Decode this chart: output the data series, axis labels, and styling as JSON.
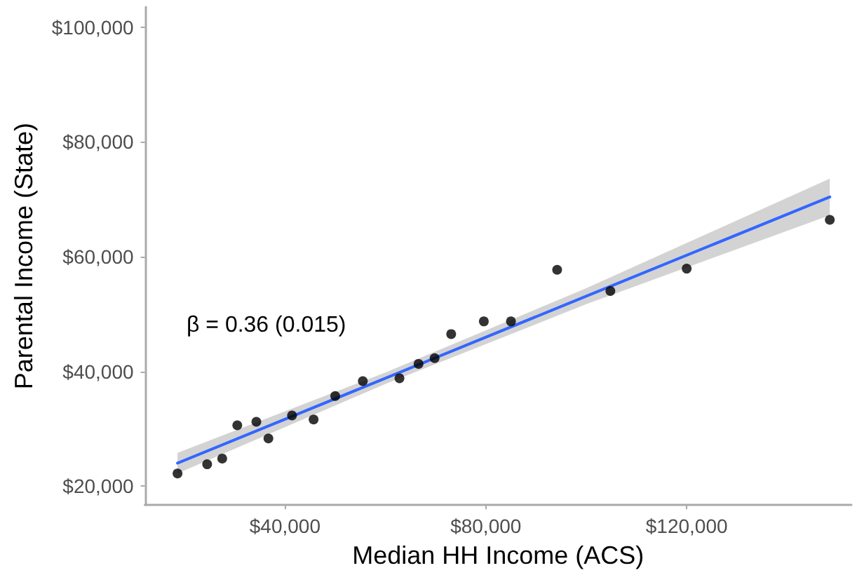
{
  "chart_data": {
    "type": "scatter",
    "xlabel": "Median HH Income (ACS)",
    "ylabel": "Parental Income (State)",
    "annotations": [
      "β = 0.36 (0.015)"
    ],
    "xlim": [
      12100,
      152800
    ],
    "ylim": [
      16700,
      103500
    ],
    "xticks": [
      {
        "value": 40000,
        "label": "$40,000"
      },
      {
        "value": 80000,
        "label": "$80,000"
      },
      {
        "value": 120000,
        "label": "$120,000"
      }
    ],
    "yticks": [
      {
        "value": 20000,
        "label": "$20,000"
      },
      {
        "value": 40000,
        "label": "$40,000"
      },
      {
        "value": 60000,
        "label": "$60,000"
      },
      {
        "value": 80000,
        "label": "$80,000"
      },
      {
        "value": 100000,
        "label": "$100,000"
      }
    ],
    "grid": false,
    "marker": "circle",
    "series": [
      {
        "color": "#000000",
        "x": [
          18600,
          24500,
          27500,
          30500,
          34300,
          36700,
          41400,
          45700,
          50000,
          55500,
          62800,
          66600,
          69800,
          73100,
          79600,
          85000,
          94200,
          104800,
          120000,
          148500
        ],
        "values": [
          22200,
          23800,
          24800,
          30600,
          31200,
          28300,
          32300,
          31600,
          35700,
          38300,
          38800,
          41300,
          42300,
          46500,
          48700,
          48700,
          57700,
          54000,
          57900,
          66400
        ]
      },
      {
        "type": "line",
        "color": "#3366ff",
        "line_style": "solid",
        "marker": "none",
        "x": [
          18600,
          60000,
          100000,
          148500
        ],
        "values": [
          24000,
          38800,
          53100,
          70400
        ],
        "lower": [
          22200,
          37800,
          51700,
          67200
        ],
        "upper": [
          25800,
          39800,
          54500,
          73600
        ]
      }
    ]
  }
}
